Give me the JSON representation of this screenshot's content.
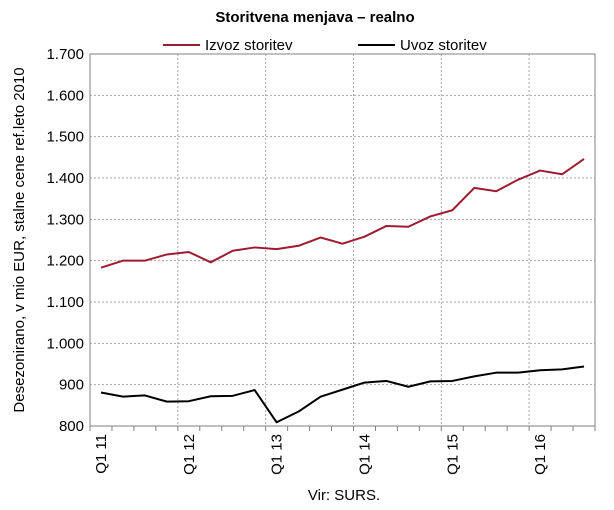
{
  "chart_data": {
    "type": "line",
    "title": "Storitvena menjava – realno",
    "ylabel": "Desezonirano, v mio EUR, stalne cene ref.leto 2010",
    "source": "Vir: SURS.",
    "ylim": [
      800,
      1700
    ],
    "yticks": [
      800,
      900,
      1000,
      1100,
      1200,
      1300,
      1400,
      1500,
      1600,
      1700
    ],
    "ytick_labels": [
      "800",
      "900",
      "1.000",
      "1.100",
      "1.200",
      "1.300",
      "1.400",
      "1.500",
      "1.600",
      "1.700"
    ],
    "x_labels": [
      "Q1 11",
      "Q1 12",
      "Q1 13",
      "Q1 14",
      "Q1 15",
      "Q1 16"
    ],
    "legend_position": "top",
    "grid": true,
    "series": [
      {
        "name": "Izvoz storitev",
        "color": "#9e1b32",
        "values": [
          1183,
          1200,
          1200,
          1215,
          1221,
          1196,
          1224,
          1232,
          1228,
          1236,
          1256,
          1241,
          1258,
          1284,
          1282,
          1307,
          1322,
          1376,
          1368,
          1396,
          1418,
          1409,
          1446
        ]
      },
      {
        "name": "Uvoz storitev",
        "color": "#000000",
        "values": [
          881,
          871,
          874,
          859,
          860,
          872,
          873,
          887,
          809,
          835,
          871,
          888,
          905,
          909,
          895,
          908,
          909,
          920,
          929,
          929,
          935,
          937,
          944
        ]
      }
    ]
  }
}
